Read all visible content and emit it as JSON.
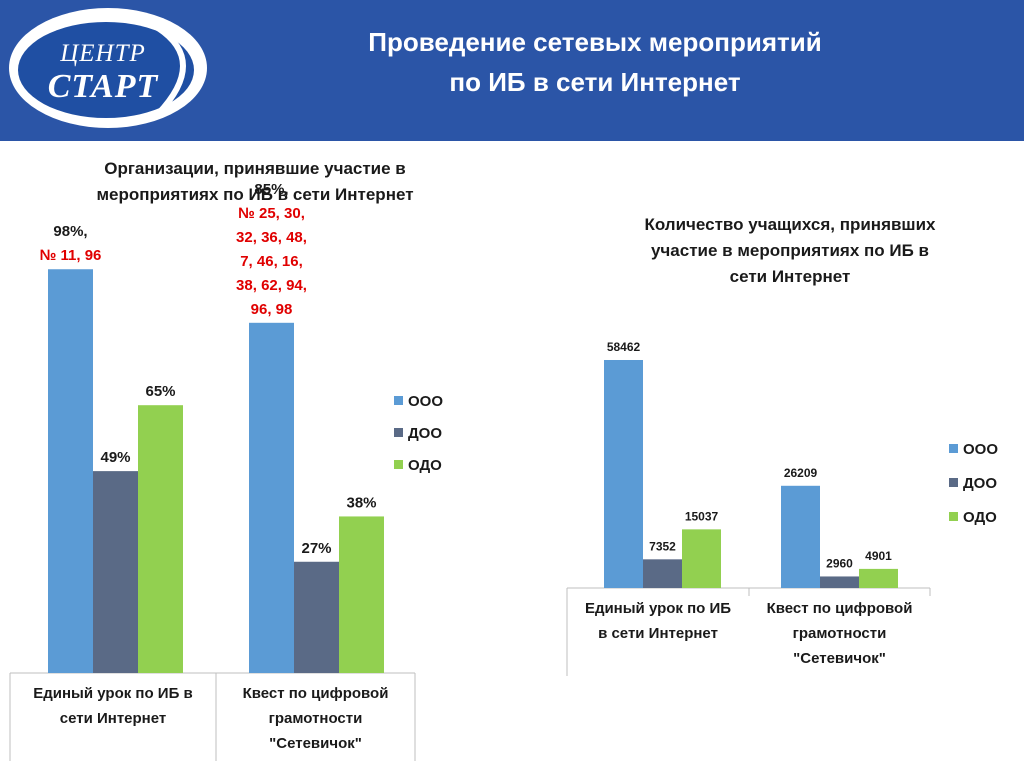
{
  "logo": {
    "top_text": "ЦЕНТР",
    "main_text": "СТАРТ"
  },
  "title": {
    "line1": "Проведение сетевых мероприятий",
    "line2": "по ИБ в сети Интернет"
  },
  "colors": {
    "header": "#2b55a7",
    "ooo": "#5b9bd5",
    "doo": "#5a6a86",
    "odo": "#92d050",
    "accent_red": "#e00000"
  },
  "chart_data": [
    {
      "type": "bar",
      "title_lines": [
        "Организации, принявшие участие в",
        "мероприятиях по ИБ в сети Интернет"
      ],
      "categories": [
        [
          "Единый урок по ИБ в",
          "сети Интернет"
        ],
        [
          "Квест по цифровой",
          "грамотности",
          "\"Сетевичок\""
        ]
      ],
      "series": [
        {
          "name": "ООО",
          "values": [
            98,
            85
          ]
        },
        {
          "name": "ДОО",
          "values": [
            49,
            27
          ]
        },
        {
          "name": "ОДО",
          "values": [
            65,
            38
          ]
        }
      ],
      "unit": "%",
      "data_labels": [
        [
          "98%,",
          "49%",
          "65%"
        ],
        [
          "85%,",
          "27%",
          "38%"
        ]
      ],
      "annotations": [
        [
          "№ 11, 96"
        ],
        [
          "№ 25, 30,",
          "32, 36, 48,",
          "7, 46, 16,",
          "38, 62, 94,",
          "96, 98"
        ]
      ],
      "ylim": [
        0,
        100
      ],
      "legend": "right"
    },
    {
      "type": "bar",
      "title_lines": [
        "Количество учащихся, принявших",
        "участие в мероприятиях по ИБ в",
        "сети Интернет"
      ],
      "categories": [
        [
          "Единый урок по ИБ",
          "в сети Интернет"
        ],
        [
          "Квест по цифровой",
          "грамотности",
          "\"Сетевичок\""
        ]
      ],
      "series": [
        {
          "name": "ООО",
          "values": [
            58462,
            26209
          ]
        },
        {
          "name": "ДОО",
          "values": [
            7352,
            2960
          ]
        },
        {
          "name": "ОДО",
          "values": [
            15037,
            4901
          ]
        }
      ],
      "data_labels": [
        [
          "58462",
          "7352",
          "15037"
        ],
        [
          "26209",
          "2960",
          "4901"
        ]
      ],
      "ylim": [
        0,
        60000
      ],
      "legend": "right"
    }
  ]
}
